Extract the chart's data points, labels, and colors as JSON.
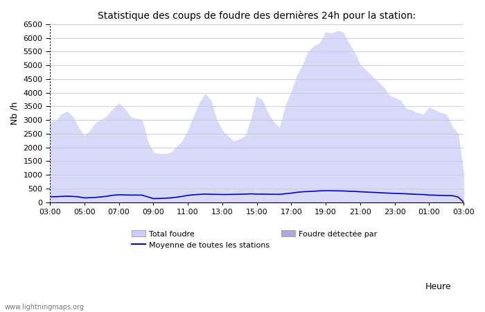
{
  "title": "Statistique des coups de foudre des dernières 24h pour la station:",
  "xlabel": "Heure",
  "ylabel": "Nb /h",
  "xlim": [
    0,
    24
  ],
  "ylim": [
    0,
    6500
  ],
  "yticks": [
    0,
    500,
    1000,
    1500,
    2000,
    2500,
    3000,
    3500,
    4000,
    4500,
    5000,
    5500,
    6000,
    6500
  ],
  "xtick_labels": [
    "03:00",
    "05:00",
    "07:00",
    "09:00",
    "11:00",
    "13:00",
    "15:00",
    "17:00",
    "19:00",
    "21:00",
    "23:00",
    "01:00",
    "03:00"
  ],
  "xtick_positions": [
    0,
    2,
    4,
    6,
    8,
    10,
    12,
    14,
    16,
    18,
    20,
    22,
    24
  ],
  "fill_color": "#d8d8f8",
  "line_color": "#0000cc",
  "background_color": "#ffffff",
  "grid_color": "#cccccc",
  "watermark": "www.lightningmaps.org",
  "legend_label1": "Total foudre",
  "legend_label2": "Moyenne de toutes les stations",
  "legend_label3": "Foudre détectée par",
  "legend_color1": "#ccccff",
  "legend_color3": "#aaaadd",
  "x_data": [
    0.0,
    0.333,
    0.667,
    1.0,
    1.333,
    1.667,
    2.0,
    2.333,
    2.667,
    3.0,
    3.333,
    3.667,
    4.0,
    4.333,
    4.667,
    5.0,
    5.333,
    5.667,
    6.0,
    6.333,
    6.667,
    7.0,
    7.333,
    7.667,
    8.0,
    8.333,
    8.667,
    9.0,
    9.333,
    9.667,
    10.0,
    10.333,
    10.667,
    11.0,
    11.333,
    11.667,
    12.0,
    12.333,
    12.667,
    13.0,
    13.333,
    13.667,
    14.0,
    14.333,
    14.667,
    15.0,
    15.333,
    15.667,
    16.0,
    16.333,
    16.667,
    17.0,
    17.333,
    17.667,
    18.0,
    18.333,
    18.667,
    19.0,
    19.333,
    19.667,
    20.0,
    20.333,
    20.667,
    21.0,
    21.333,
    21.667,
    22.0,
    22.333,
    22.667,
    23.0,
    23.333,
    23.667,
    24.0
  ],
  "total_foudre": [
    2900,
    2950,
    3200,
    3300,
    3100,
    2700,
    2400,
    2600,
    2900,
    3000,
    3150,
    3400,
    3600,
    3400,
    3100,
    3050,
    3000,
    2200,
    1800,
    1760,
    1750,
    1800,
    2000,
    2200,
    2600,
    3100,
    3600,
    3950,
    3700,
    3000,
    2600,
    2400,
    2200,
    2300,
    2400,
    3000,
    3850,
    3700,
    3200,
    2900,
    2700,
    3500,
    4000,
    4600,
    5000,
    5500,
    5700,
    5800,
    6200,
    6150,
    6250,
    6200,
    5800,
    5450,
    5000,
    4800,
    4600,
    4400,
    4200,
    3900,
    3800,
    3700,
    3400,
    3350,
    3250,
    3200,
    3450,
    3350,
    3250,
    3200,
    2750,
    2500,
    950
  ],
  "moyenne": [
    200,
    200,
    210,
    220,
    210,
    195,
    155,
    165,
    175,
    195,
    220,
    255,
    270,
    265,
    260,
    260,
    258,
    195,
    130,
    135,
    145,
    155,
    180,
    210,
    250,
    270,
    285,
    295,
    288,
    285,
    280,
    282,
    285,
    290,
    295,
    305,
    295,
    295,
    290,
    288,
    285,
    310,
    330,
    360,
    380,
    390,
    400,
    415,
    420,
    418,
    415,
    410,
    400,
    395,
    380,
    370,
    360,
    350,
    340,
    330,
    320,
    315,
    305,
    295,
    285,
    280,
    260,
    255,
    248,
    242,
    238,
    190,
    10
  ]
}
